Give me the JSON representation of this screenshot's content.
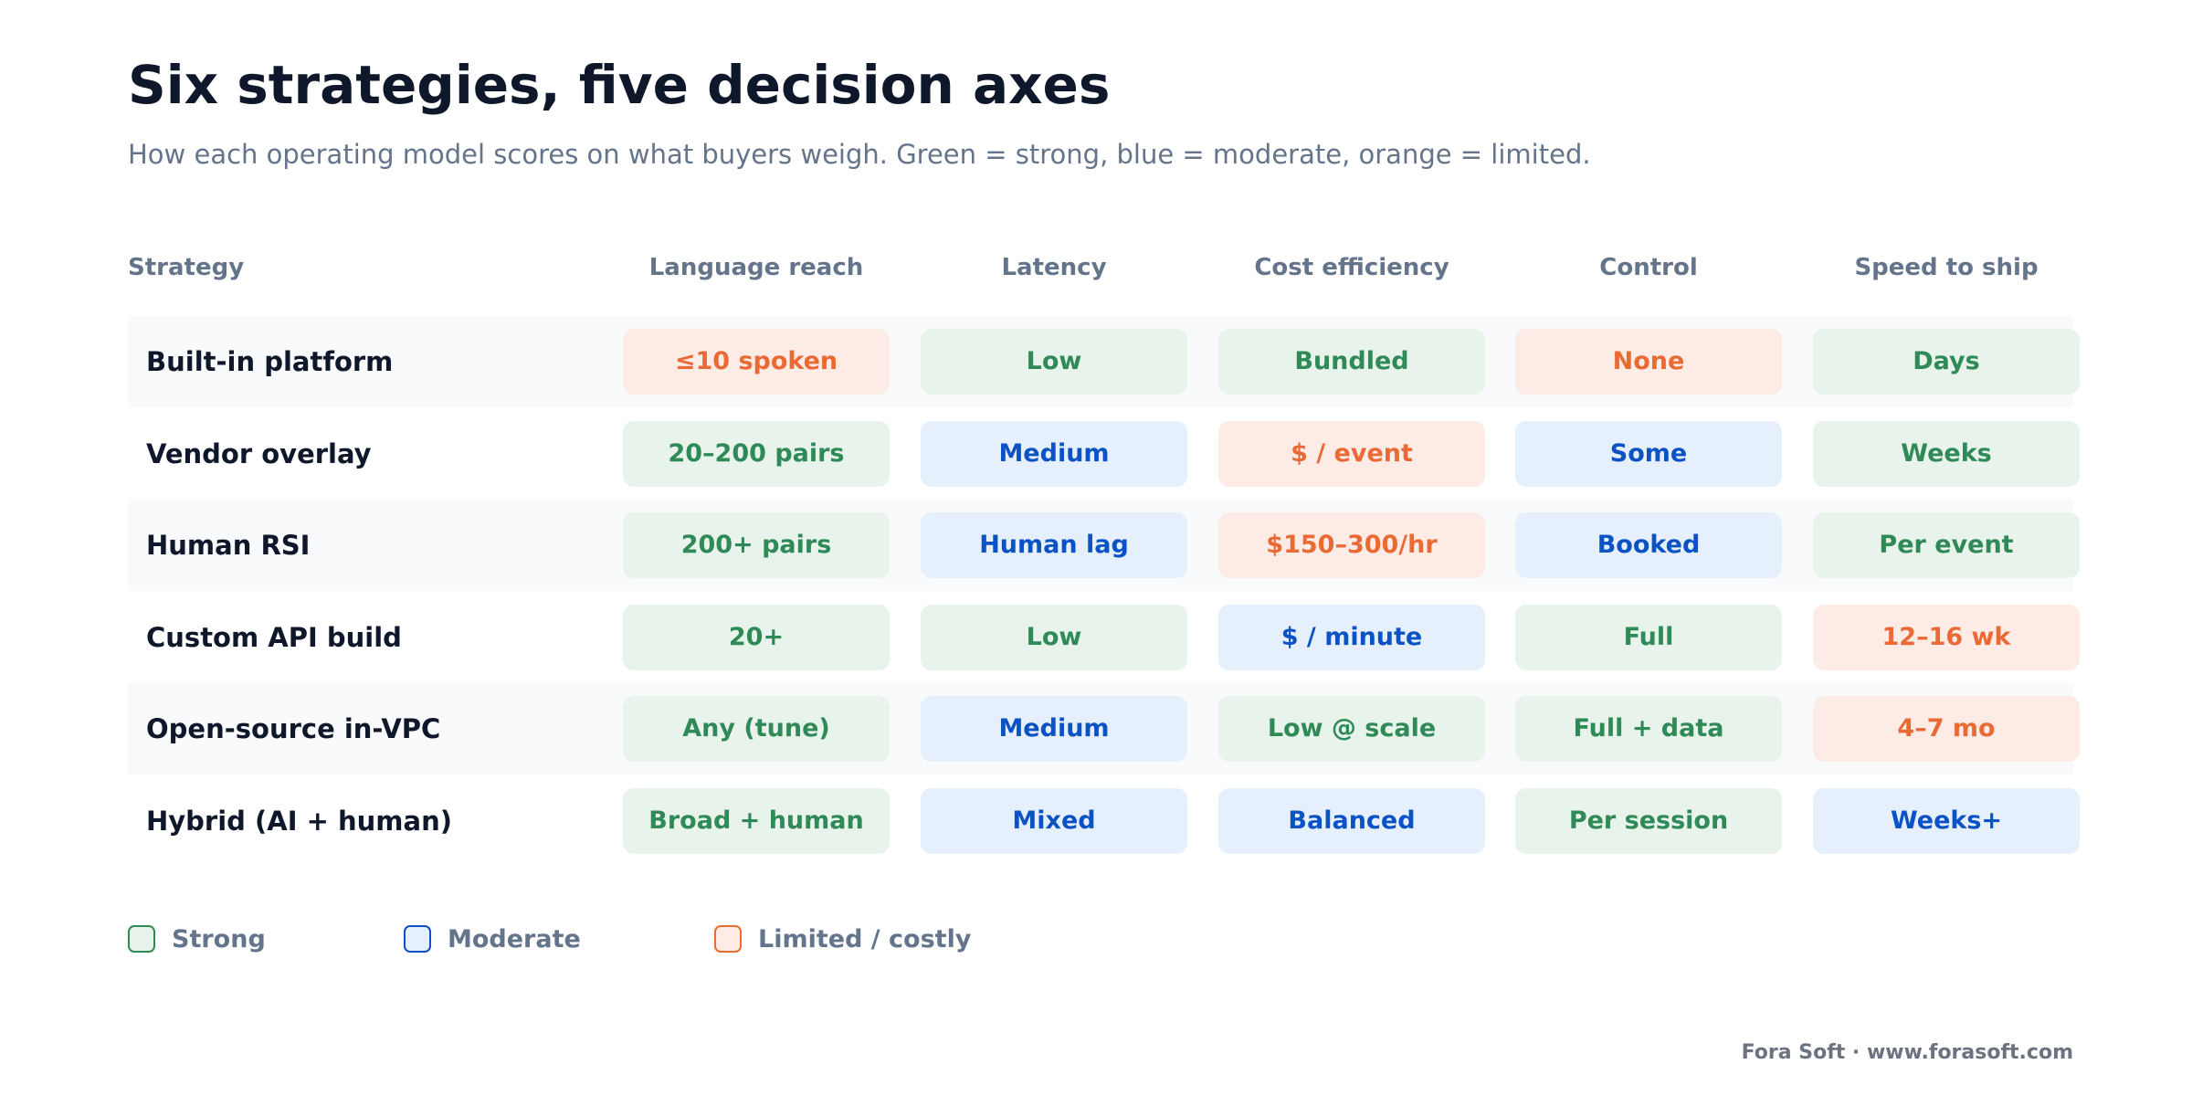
{
  "title": "Six strategies, five decision axes",
  "subtitle": "How each operating model scores on what buyers weigh. Green = strong, blue = moderate, orange = limited.",
  "colors": {
    "strong": "#2f8a57",
    "moderate": "#0b52c4",
    "limited": "#ea6a36"
  },
  "chart_data": {
    "type": "table",
    "row_header": "Strategy",
    "columns": [
      "Language reach",
      "Latency",
      "Cost efficiency",
      "Control",
      "Speed to ship"
    ],
    "rows": [
      {
        "strategy": "Built-in platform",
        "cells": [
          {
            "text": "≤10 spoken",
            "rating": "limited"
          },
          {
            "text": "Low",
            "rating": "strong"
          },
          {
            "text": "Bundled",
            "rating": "strong"
          },
          {
            "text": "None",
            "rating": "limited"
          },
          {
            "text": "Days",
            "rating": "strong"
          }
        ]
      },
      {
        "strategy": "Vendor overlay",
        "cells": [
          {
            "text": "20–200 pairs",
            "rating": "strong"
          },
          {
            "text": "Medium",
            "rating": "moderate"
          },
          {
            "text": "$ / event",
            "rating": "limited"
          },
          {
            "text": "Some",
            "rating": "moderate"
          },
          {
            "text": "Weeks",
            "rating": "strong"
          }
        ]
      },
      {
        "strategy": "Human RSI",
        "cells": [
          {
            "text": "200+ pairs",
            "rating": "strong"
          },
          {
            "text": "Human lag",
            "rating": "moderate"
          },
          {
            "text": "$150–300/hr",
            "rating": "limited"
          },
          {
            "text": "Booked",
            "rating": "moderate"
          },
          {
            "text": "Per event",
            "rating": "strong"
          }
        ]
      },
      {
        "strategy": "Custom API build",
        "cells": [
          {
            "text": "20+",
            "rating": "strong"
          },
          {
            "text": "Low",
            "rating": "strong"
          },
          {
            "text": "$ / minute",
            "rating": "moderate"
          },
          {
            "text": "Full",
            "rating": "strong"
          },
          {
            "text": "12–16 wk",
            "rating": "limited"
          }
        ]
      },
      {
        "strategy": "Open-source in-VPC",
        "cells": [
          {
            "text": "Any (tune)",
            "rating": "strong"
          },
          {
            "text": "Medium",
            "rating": "moderate"
          },
          {
            "text": "Low @ scale",
            "rating": "strong"
          },
          {
            "text": "Full + data",
            "rating": "strong"
          },
          {
            "text": "4–7 mo",
            "rating": "limited"
          }
        ]
      },
      {
        "strategy": "Hybrid (AI + human)",
        "cells": [
          {
            "text": "Broad + human",
            "rating": "strong"
          },
          {
            "text": "Mixed",
            "rating": "moderate"
          },
          {
            "text": "Balanced",
            "rating": "moderate"
          },
          {
            "text": "Per session",
            "rating": "strong"
          },
          {
            "text": "Weeks+",
            "rating": "moderate"
          }
        ]
      }
    ],
    "legend": [
      {
        "label": "Strong",
        "rating": "strong"
      },
      {
        "label": "Moderate",
        "rating": "moderate"
      },
      {
        "label": "Limited / costly",
        "rating": "limited"
      }
    ]
  },
  "footer": "Fora Soft · www.forasoft.com"
}
